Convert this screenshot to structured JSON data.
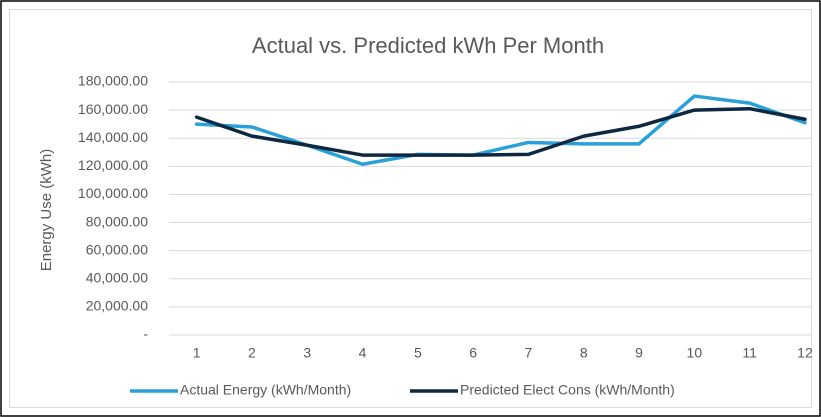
{
  "chart_data": {
    "type": "line",
    "title": "Actual vs. Predicted kWh Per Month",
    "y_label": "Energy Use (kWh)",
    "categories": [
      "1",
      "2",
      "3",
      "4",
      "5",
      "6",
      "7",
      "8",
      "9",
      "10",
      "11",
      "12"
    ],
    "series": [
      {
        "name": "Actual Energy (kWh/Month)",
        "color": "#2aa0d8",
        "values": [
          150000,
          148000,
          135000,
          121500,
          128500,
          128000,
          137000,
          136000,
          136000,
          170000,
          165000,
          151000
        ]
      },
      {
        "name": "Predicted Elect Cons (kWh/Month)",
        "color": "#0e2841",
        "values": [
          155000,
          141500,
          135000,
          128000,
          128000,
          128000,
          128500,
          141500,
          148500,
          160000,
          161000,
          153500
        ]
      }
    ],
    "ylim": [
      0,
      180000
    ],
    "yticks": [
      {
        "value": 0,
        "label": "-"
      },
      {
        "value": 20000,
        "label": "20,000.00"
      },
      {
        "value": 40000,
        "label": "40,000.00"
      },
      {
        "value": 60000,
        "label": "60,000.00"
      },
      {
        "value": 80000,
        "label": "80,000.00"
      },
      {
        "value": 100000,
        "label": "100,000.00"
      },
      {
        "value": 120000,
        "label": "120,000.00"
      },
      {
        "value": 140000,
        "label": "140,000.00"
      },
      {
        "value": 160000,
        "label": "160,000.00"
      },
      {
        "value": 180000,
        "label": "180,000.00"
      }
    ],
    "grid": true,
    "legend": "bottom"
  }
}
